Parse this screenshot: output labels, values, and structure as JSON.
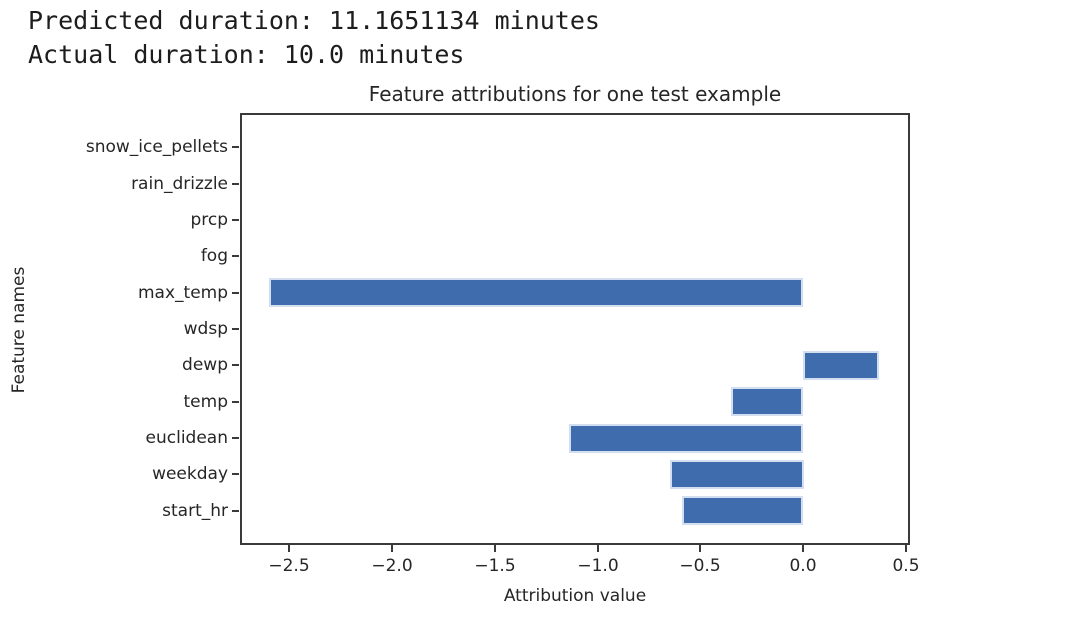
{
  "header": {
    "predicted_line": "Predicted duration: 11.1651134 minutes",
    "actual_line": "Actual duration: 10.0 minutes"
  },
  "chart_data": {
    "type": "bar",
    "orientation": "horizontal",
    "title": "Feature attributions for one test example",
    "xlabel": "Attribution value",
    "ylabel": "Feature names",
    "categories": [
      "snow_ice_pellets",
      "rain_drizzle",
      "prcp",
      "fog",
      "max_temp",
      "wdsp",
      "dewp",
      "temp",
      "euclidean",
      "weekday",
      "start_hr"
    ],
    "values": [
      0,
      0,
      0,
      0,
      -2.6,
      0,
      0.37,
      -0.35,
      -1.14,
      -0.65,
      -0.59
    ],
    "xlim": [
      -2.74,
      0.52
    ],
    "xticks": [
      -2.5,
      -2.0,
      -1.5,
      -1.0,
      -0.5,
      0.0,
      0.5
    ],
    "grid": false,
    "legend": null,
    "bar_color": "#3f6cac",
    "bar_edge_color": "#d3dff0",
    "axis_color": "#3a3a3a"
  }
}
